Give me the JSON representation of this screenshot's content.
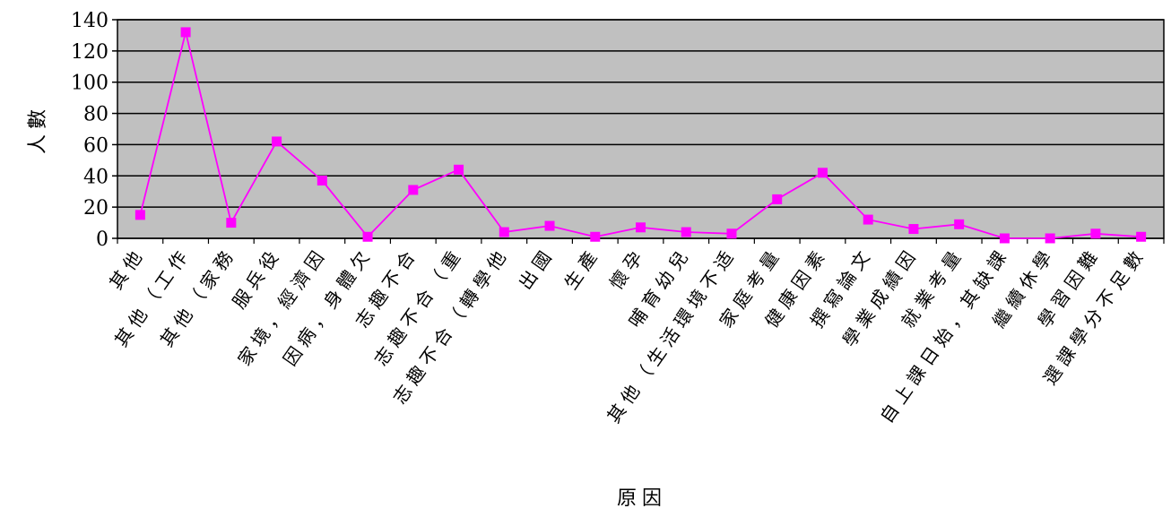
{
  "chart_data": {
    "type": "line",
    "ylabel": "人數",
    "xlabel": "原因",
    "ylim": [
      0,
      140
    ],
    "yticks": [
      0,
      20,
      40,
      60,
      80,
      100,
      120,
      140
    ],
    "grid": true,
    "colors": {
      "plot_background": "#c0c0c0",
      "gridline": "#000000",
      "series_line": "#ff00ff",
      "marker": "#ff00ff"
    },
    "categories": [
      "其他",
      "其他（工作",
      "其他（家務",
      "服兵役",
      "家境，經濟因",
      "因病，身體欠",
      "志趣不合",
      "志趣不合（重",
      "志趣不合（轉學他",
      "出國",
      "生產",
      "懷孕",
      "哺育幼兒",
      "其他（生活環境不适",
      "家庭考量",
      "健康因素",
      "撰寫論文",
      "學業成績因",
      "就業考量",
      "自上課日始，其缺課",
      "繼續休學",
      "學習因難",
      "選課學分不足數"
    ],
    "series": [
      {
        "values": [
          15,
          132,
          10,
          62,
          37,
          1,
          31,
          44,
          4,
          8,
          1,
          7,
          4,
          3,
          25,
          42,
          12,
          6,
          9,
          0,
          0,
          3,
          1
        ]
      }
    ]
  }
}
